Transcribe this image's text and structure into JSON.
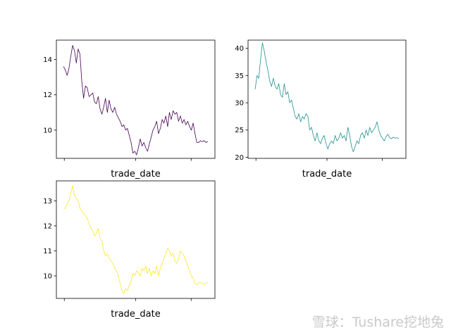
{
  "chart_data": [
    {
      "type": "line",
      "xlabel": "trade_date",
      "ylabel": "",
      "ylim": [
        8.4,
        15.1
      ],
      "yticks": [
        10,
        12,
        14
      ],
      "ytick_labels": [
        "10",
        "12",
        "14"
      ],
      "xticks": [
        0.05,
        0.5,
        0.85
      ],
      "grid": false,
      "color": "#440154",
      "series": [
        {
          "name": "",
          "x": [
            0,
            1,
            2,
            3,
            4,
            5,
            6,
            7,
            8,
            9,
            10,
            11,
            12,
            13,
            14,
            15,
            16,
            17,
            18,
            19,
            20,
            21,
            22,
            23,
            24,
            25,
            26,
            27,
            28,
            29,
            30,
            31,
            32,
            33,
            34,
            35,
            36,
            37,
            38,
            39,
            40,
            41,
            42,
            43,
            44,
            45,
            46,
            47,
            48,
            49,
            50,
            51,
            52,
            53,
            54,
            55,
            56,
            57,
            58,
            59,
            60,
            61,
            62,
            63,
            64,
            65,
            66,
            67,
            68,
            69,
            70,
            71,
            72,
            73,
            74,
            75,
            76,
            77,
            78,
            79
          ],
          "values": [
            13.6,
            13.4,
            13.1,
            13.5,
            14.2,
            14.8,
            14.5,
            13.8,
            14.6,
            14.3,
            12.8,
            11.8,
            12.5,
            12.4,
            11.9,
            12.0,
            12.1,
            11.6,
            11.5,
            11.9,
            11.2,
            10.9,
            11.3,
            11.8,
            11.0,
            11.7,
            11.2,
            11.0,
            11.3,
            10.9,
            10.7,
            10.5,
            10.2,
            10.3,
            10.0,
            10.1,
            9.7,
            9.3,
            8.7,
            8.8,
            8.6,
            9.0,
            9.5,
            9.1,
            9.3,
            9.0,
            8.8,
            9.2,
            9.6,
            10.0,
            10.2,
            10.5,
            9.8,
            10.1,
            10.6,
            10.4,
            10.8,
            10.2,
            11.0,
            10.6,
            11.1,
            10.9,
            11.0,
            10.5,
            10.8,
            10.4,
            10.6,
            10.3,
            10.5,
            10.2,
            10.0,
            10.4,
            9.8,
            9.3,
            9.3,
            9.4,
            9.35,
            9.4,
            9.3,
            9.35
          ]
        }
      ]
    },
    {
      "type": "line",
      "xlabel": "trade_date",
      "ylabel": "",
      "ylim": [
        19.8,
        41.5
      ],
      "yticks": [
        20,
        25,
        30,
        35,
        40
      ],
      "ytick_labels": [
        "20",
        "25",
        "30",
        "35",
        "40"
      ],
      "xticks": [
        0.05,
        0.5,
        0.85
      ],
      "grid": false,
      "color": "#21918c",
      "series": [
        {
          "name": "",
          "x": [
            0,
            1,
            2,
            3,
            4,
            5,
            6,
            7,
            8,
            9,
            10,
            11,
            12,
            13,
            14,
            15,
            16,
            17,
            18,
            19,
            20,
            21,
            22,
            23,
            24,
            25,
            26,
            27,
            28,
            29,
            30,
            31,
            32,
            33,
            34,
            35,
            36,
            37,
            38,
            39,
            40,
            41,
            42,
            43,
            44,
            45,
            46,
            47,
            48,
            49,
            50,
            51,
            52,
            53,
            54,
            55,
            56,
            57,
            58,
            59,
            60,
            61,
            62,
            63,
            64,
            65,
            66,
            67,
            68,
            69,
            70,
            71,
            72,
            73,
            74,
            75,
            76,
            77,
            78,
            79
          ],
          "values": [
            32.5,
            35.0,
            34.5,
            38.0,
            41.0,
            39.5,
            37.5,
            36.0,
            34.0,
            33.0,
            34.5,
            33.0,
            32.5,
            33.5,
            31.5,
            31.0,
            33.5,
            31.5,
            32.0,
            30.0,
            30.5,
            29.0,
            27.5,
            27.0,
            28.0,
            26.5,
            27.5,
            27.0,
            28.0,
            27.5,
            25.0,
            25.5,
            24.0,
            23.0,
            24.5,
            23.0,
            22.5,
            23.5,
            24.0,
            22.5,
            21.5,
            22.5,
            23.0,
            22.5,
            24.0,
            23.0,
            23.5,
            24.5,
            23.5,
            24.0,
            23.0,
            25.5,
            24.0,
            22.0,
            21.0,
            22.0,
            23.0,
            22.5,
            24.0,
            24.5,
            23.5,
            25.0,
            24.0,
            25.5,
            24.5,
            25.0,
            25.5,
            26.5,
            25.0,
            24.0,
            23.5,
            23.0,
            23.8,
            24.2,
            23.6,
            23.4,
            23.7,
            23.5,
            23.6,
            23.4
          ]
        }
      ]
    },
    {
      "type": "line",
      "xlabel": "trade_date",
      "ylabel": "",
      "ylim": [
        9.1,
        13.8
      ],
      "yticks": [
        10,
        11,
        12,
        13
      ],
      "ytick_labels": [
        "10",
        "11",
        "12",
        "13"
      ],
      "xticks": [
        0.05,
        0.5,
        0.85
      ],
      "grid": false,
      "color": "#fde725",
      "series": [
        {
          "name": "",
          "x": [
            0,
            1,
            2,
            3,
            4,
            5,
            6,
            7,
            8,
            9,
            10,
            11,
            12,
            13,
            14,
            15,
            16,
            17,
            18,
            19,
            20,
            21,
            22,
            23,
            24,
            25,
            26,
            27,
            28,
            29,
            30,
            31,
            32,
            33,
            34,
            35,
            36,
            37,
            38,
            39,
            40,
            41,
            42,
            43,
            44,
            45,
            46,
            47,
            48,
            49,
            50,
            51,
            52,
            53,
            54,
            55,
            56,
            57,
            58,
            59,
            60,
            61,
            62,
            63,
            64,
            65,
            66,
            67,
            68,
            69,
            70,
            71,
            72,
            73,
            74,
            75,
            76,
            77,
            78,
            79
          ],
          "values": [
            12.7,
            12.7,
            12.9,
            13.0,
            13.3,
            13.6,
            13.2,
            13.1,
            13.0,
            12.7,
            12.6,
            12.5,
            12.4,
            12.3,
            12.1,
            11.9,
            11.8,
            11.6,
            11.7,
            11.9,
            11.5,
            11.4,
            11.0,
            10.8,
            10.9,
            10.7,
            10.6,
            10.5,
            10.3,
            10.2,
            10.0,
            9.7,
            9.4,
            9.3,
            9.5,
            9.4,
            9.6,
            9.8,
            10.1,
            10.0,
            10.2,
            10.1,
            10.0,
            10.3,
            10.2,
            10.4,
            10.1,
            10.3,
            10.0,
            10.2,
            10.1,
            10.4,
            10.0,
            10.3,
            10.5,
            10.7,
            10.9,
            11.1,
            11.0,
            10.8,
            10.9,
            10.6,
            10.5,
            10.7,
            11.0,
            10.9,
            10.8,
            10.6,
            10.4,
            10.2,
            10.0,
            9.9,
            9.7,
            9.65,
            9.7,
            9.75,
            9.7,
            9.65,
            9.7,
            9.75
          ]
        }
      ]
    }
  ],
  "watermark": "雪球：Tushare挖地兔"
}
